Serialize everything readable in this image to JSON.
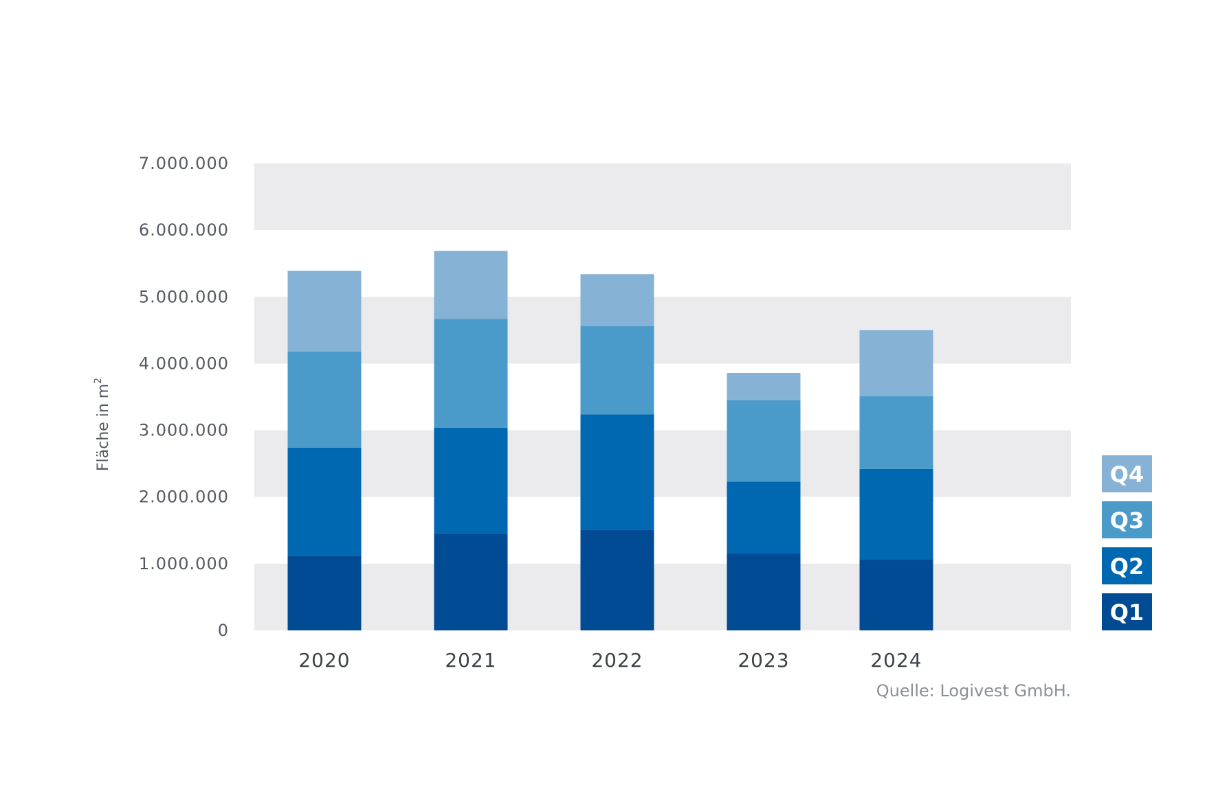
{
  "chart_data": {
    "type": "bar",
    "stacked": true,
    "categories": [
      "2020",
      "2021",
      "2022",
      "2023",
      "2024"
    ],
    "series": [
      {
        "name": "Q1",
        "color": "#004b93",
        "values": [
          1120000,
          1450000,
          1510000,
          1160000,
          1060000
        ]
      },
      {
        "name": "Q2",
        "color": "#0067b1",
        "values": [
          1620000,
          1590000,
          1730000,
          1070000,
          1360000
        ]
      },
      {
        "name": "Q3",
        "color": "#4a9bc9",
        "values": [
          1440000,
          1630000,
          1320000,
          1220000,
          1090000
        ]
      },
      {
        "name": "Q4",
        "color": "#86b2d6",
        "values": [
          1210000,
          1020000,
          780000,
          410000,
          990000
        ]
      }
    ],
    "ylabel": "Fläche in m",
    "ylabel_superscript": "2",
    "ylim": [
      0,
      7000000
    ],
    "yticks": [
      0,
      1000000,
      2000000,
      3000000,
      4000000,
      5000000,
      6000000,
      7000000
    ],
    "ytick_labels": [
      "0",
      "1.000.000",
      "2.000.000",
      "3.000.000",
      "4.000.000",
      "5.000.000",
      "6.000.000",
      "7.000.000"
    ],
    "grid": "alternating horizontal bands",
    "band_color": "#ebebed",
    "legend": {
      "placement": "right",
      "order": [
        "Q4",
        "Q3",
        "Q2",
        "Q1"
      ]
    },
    "source": "Quelle: Logivest GmbH."
  }
}
